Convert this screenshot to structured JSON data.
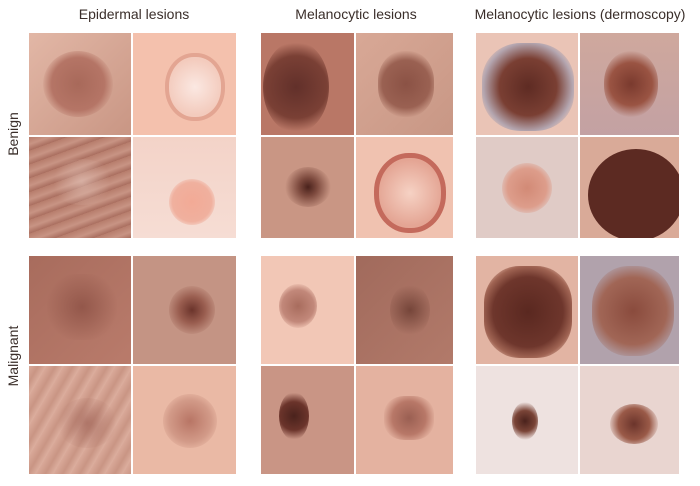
{
  "columns": [
    "Epidermal lesions",
    "Melanocytic lesions",
    "Melanocytic lesions (dermoscopy)"
  ],
  "rows": [
    "Benign",
    "Malignant"
  ],
  "tile_description": "skin lesion photograph",
  "palette": {
    "skin_light": "#f2cbbb",
    "skin_pink": "#f0b8a3",
    "skin_tan": "#c98f7c",
    "skin_brown": "#a86c5d",
    "lesion_dark": "#6b342b",
    "lesion_black": "#4a221c",
    "dermoscopy_gray": "#b4a6b0"
  }
}
